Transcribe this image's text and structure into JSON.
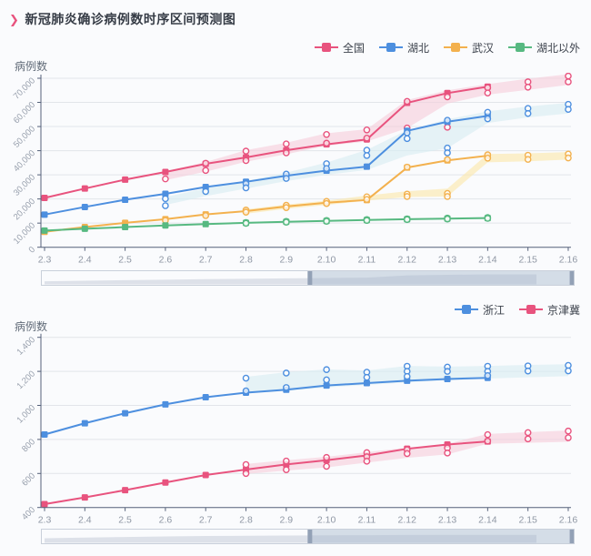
{
  "title": {
    "icon": "❯",
    "text": "新冠肺炎确诊病例数时序区间预测图"
  },
  "colors": {
    "national": "#e8537e",
    "hubei": "#4d8fdf",
    "wuhan": "#f3b14e",
    "outside_hubei": "#57b981",
    "zhejiang": "#4d8fdf",
    "jingjinji": "#e8537e",
    "band_pink": "#f6cddb",
    "band_cyan": "#d7edf2",
    "band_yellow": "#fce8a8",
    "band_green": "#d9efe2",
    "axis": "#55617a",
    "grid": "#e2e5ea",
    "tick_label": "#99a1ae",
    "slider_border": "#c9d0da",
    "slider_shadow": "#dde1e9",
    "slider_fill": "rgba(167,183,204,0.45)",
    "slider_handle": "#93a1b6"
  },
  "sliders": {
    "selected_start": 0.504,
    "selected_end": 0.995
  },
  "chart_data": [
    {
      "type": "line",
      "ylabel": "病例数",
      "categories": [
        "2.3",
        "2.4",
        "2.5",
        "2.6",
        "2.7",
        "2.8",
        "2.9",
        "2.10",
        "2.11",
        "2.12",
        "2.13",
        "2.14",
        "2.15",
        "2.16"
      ],
      "ymin": 0,
      "ystep": 10000,
      "yticks": [
        "0",
        "10,000",
        "20,000",
        "30,000",
        "40,000",
        "50,000",
        "60,000",
        "70,000"
      ],
      "legend_position": "top-right",
      "grid": true,
      "series": [
        {
          "key": "national",
          "label": "全国",
          "color_key": "national",
          "band_key": "band_pink",
          "actual": [
            20438,
            24324,
            28018,
            31161,
            34546,
            37198,
            40171,
            42638,
            44653,
            59804,
            63851,
            66492
          ],
          "forecast": [
            [
              3,
              28300
            ],
            [
              4,
              34800
            ],
            [
              4,
              31800
            ],
            [
              5,
              39800
            ],
            [
              5,
              35900
            ],
            [
              6,
              42800
            ],
            [
              6,
              39100
            ],
            [
              7,
              46700
            ],
            [
              7,
              43100
            ],
            [
              8,
              48600
            ],
            [
              8,
              45200
            ],
            [
              9,
              60400
            ],
            [
              9,
              49400
            ],
            [
              10,
              62300
            ],
            [
              10,
              49700
            ],
            [
              11,
              66100
            ],
            [
              11,
              63900
            ],
            [
              12,
              68500
            ],
            [
              12,
              66300
            ],
            [
              13,
              70900
            ],
            [
              13,
              68500
            ]
          ],
          "band": [
            [
              3,
              27800,
              31500
            ],
            [
              4,
              31300,
              35300
            ],
            [
              5,
              35400,
              40200
            ],
            [
              6,
              38500,
              43300
            ],
            [
              7,
              42000,
              47200
            ],
            [
              8,
              43800,
              48900
            ],
            [
              9,
              49300,
              61000
            ],
            [
              10,
              59500,
              65000
            ],
            [
              11,
              63200,
              67600
            ],
            [
              12,
              65200,
              69800
            ],
            [
              13,
              67200,
              71700
            ]
          ]
        },
        {
          "key": "hubei",
          "label": "湖北",
          "color_key": "hubei",
          "band_key": "band_cyan",
          "actual": [
            13522,
            16678,
            19665,
            22112,
            24953,
            27100,
            29631,
            31728,
            33366,
            48206,
            51986,
            54406
          ],
          "forecast": [
            [
              3,
              20100
            ],
            [
              3,
              17200
            ],
            [
              4,
              23100
            ],
            [
              5,
              26300
            ],
            [
              5,
              24600
            ],
            [
              6,
              30300
            ],
            [
              6,
              28500
            ],
            [
              7,
              34600
            ],
            [
              7,
              32600
            ],
            [
              8,
              40200
            ],
            [
              8,
              38000
            ],
            [
              9,
              47400
            ],
            [
              9,
              45000
            ],
            [
              10,
              52600
            ],
            [
              10,
              41100
            ],
            [
              10,
              39100
            ],
            [
              11,
              55900
            ],
            [
              11,
              53200
            ],
            [
              12,
              57500
            ],
            [
              12,
              55400
            ],
            [
              13,
              59200
            ],
            [
              13,
              57100
            ]
          ],
          "band": [
            [
              3,
              17500,
              20800
            ],
            [
              4,
              21200,
              24400
            ],
            [
              5,
              24300,
              27500
            ],
            [
              6,
              27400,
              30900
            ],
            [
              7,
              30000,
              35100
            ],
            [
              8,
              32000,
              40300
            ],
            [
              9,
              38000,
              48500
            ],
            [
              10,
              41000,
              53000
            ],
            [
              11,
              51500,
              56300
            ],
            [
              12,
              53800,
              58300
            ],
            [
              13,
              55400,
              59800
            ]
          ]
        },
        {
          "key": "wuhan",
          "label": "武汉",
          "color_key": "wuhan",
          "band_key": "band_yellow",
          "actual": [
            6384,
            8351,
            10117,
            11618,
            13603,
            14982,
            16902,
            18454,
            19558,
            32994,
            35991,
            37914
          ],
          "forecast": [
            [
              3,
              11100
            ],
            [
              4,
              13100
            ],
            [
              5,
              15400
            ],
            [
              5,
              14500
            ],
            [
              6,
              17400
            ],
            [
              6,
              16400
            ],
            [
              7,
              19000
            ],
            [
              7,
              18100
            ],
            [
              8,
              20900
            ],
            [
              8,
              19800
            ],
            [
              9,
              33200
            ],
            [
              9,
              22000
            ],
            [
              9,
              21000
            ],
            [
              10,
              36300
            ],
            [
              10,
              22300
            ],
            [
              10,
              21000
            ],
            [
              11,
              38300
            ],
            [
              11,
              36900
            ],
            [
              12,
              38100
            ],
            [
              12,
              36400
            ],
            [
              13,
              38600
            ],
            [
              13,
              37000
            ]
          ],
          "band": [
            [
              5,
              13900,
              15700
            ],
            [
              6,
              15900,
              17700
            ],
            [
              7,
              17500,
              19300
            ],
            [
              8,
              19300,
              21400
            ],
            [
              9,
              20800,
              23200
            ],
            [
              10,
              21000,
              24300
            ],
            [
              11,
              35200,
              38600
            ],
            [
              12,
              35600,
              38900
            ],
            [
              13,
              36300,
              39400
            ]
          ]
        },
        {
          "key": "outside_hubei",
          "label": "湖北以外",
          "color_key": "outside_hubei",
          "band_key": "band_green",
          "actual": [
            6916,
            7646,
            8353,
            9049,
            9593,
            10098,
            10540,
            10910,
            11287,
            11598,
            11865,
            12086
          ],
          "forecast": [
            [
              5,
              10250
            ],
            [
              5,
              9900
            ],
            [
              6,
              10700
            ],
            [
              6,
              10380
            ],
            [
              7,
              11100
            ],
            [
              7,
              10750
            ],
            [
              8,
              11450
            ],
            [
              8,
              11100
            ],
            [
              9,
              11750
            ],
            [
              9,
              11450
            ],
            [
              10,
              12050
            ],
            [
              10,
              11700
            ],
            [
              11,
              12300
            ],
            [
              11,
              11950
            ]
          ],
          "band": [
            [
              5,
              9800,
              10450
            ],
            [
              6,
              10250,
              10900
            ],
            [
              7,
              10650,
              11300
            ],
            [
              8,
              11000,
              11650
            ],
            [
              9,
              11350,
              11950
            ],
            [
              10,
              11600,
              12200
            ],
            [
              11,
              11850,
              12450
            ]
          ]
        }
      ]
    },
    {
      "type": "line",
      "ylabel": "病例数",
      "categories": [
        "2.3",
        "2.4",
        "2.5",
        "2.6",
        "2.7",
        "2.8",
        "2.9",
        "2.10",
        "2.11",
        "2.12",
        "2.13",
        "2.14",
        "2.15",
        "2.16"
      ],
      "ymin": 400,
      "ystep": 200,
      "yticks": [
        "400",
        "600",
        "800",
        "1,000",
        "1,200",
        "1,400"
      ],
      "legend_position": "top-right",
      "grid": true,
      "series": [
        {
          "key": "zhejiang",
          "label": "浙江",
          "color_key": "zhejiang",
          "band_key": "band_cyan",
          "actual": [
            829,
            895,
            954,
            1006,
            1048,
            1075,
            1092,
            1117,
            1131,
            1145,
            1155,
            1162
          ],
          "forecast": [
            [
              5,
              1160
            ],
            [
              5,
              1085
            ],
            [
              6,
              1190
            ],
            [
              6,
              1105
            ],
            [
              7,
              1210
            ],
            [
              7,
              1150
            ],
            [
              8,
              1195
            ],
            [
              8,
              1165
            ],
            [
              9,
              1230
            ],
            [
              9,
              1200
            ],
            [
              9,
              1170
            ],
            [
              10,
              1225
            ],
            [
              10,
              1200
            ],
            [
              11,
              1230
            ],
            [
              11,
              1200
            ],
            [
              11,
              1175
            ],
            [
              12,
              1232
            ],
            [
              12,
              1202
            ],
            [
              13,
              1235
            ],
            [
              13,
              1203
            ]
          ],
          "band": [
            [
              5,
              1070,
              1168
            ],
            [
              6,
              1085,
              1195
            ],
            [
              7,
              1105,
              1212
            ],
            [
              8,
              1120,
              1205
            ],
            [
              9,
              1135,
              1232
            ],
            [
              10,
              1148,
              1228
            ],
            [
              11,
              1158,
              1232
            ],
            [
              12,
              1165,
              1238
            ],
            [
              13,
              1172,
              1242
            ]
          ]
        },
        {
          "key": "jingjinji",
          "label": "京津冀",
          "color_key": "jingjinji",
          "band_key": "band_pink",
          "actual": [
            420,
            459,
            502,
            547,
            591,
            623,
            653,
            678,
            706,
            745,
            770,
            788
          ],
          "forecast": [
            [
              5,
              652
            ],
            [
              5,
              600
            ],
            [
              6,
              673
            ],
            [
              6,
              622
            ],
            [
              7,
              694
            ],
            [
              7,
              642
            ],
            [
              8,
              722
            ],
            [
              8,
              698
            ],
            [
              8,
              672
            ],
            [
              9,
              740
            ],
            [
              9,
              717
            ],
            [
              10,
              750
            ],
            [
              10,
              720
            ],
            [
              11,
              828
            ],
            [
              11,
              790
            ],
            [
              12,
              840
            ],
            [
              12,
              803
            ],
            [
              13,
              849
            ],
            [
              13,
              810
            ]
          ],
          "band": [
            [
              5,
              597,
              656
            ],
            [
              6,
              617,
              678
            ],
            [
              7,
              636,
              698
            ],
            [
              8,
              664,
              725
            ],
            [
              9,
              692,
              752
            ],
            [
              10,
              712,
              775
            ],
            [
              11,
              775,
              832
            ],
            [
              12,
              780,
              843
            ],
            [
              13,
              786,
              852
            ]
          ]
        }
      ]
    }
  ]
}
